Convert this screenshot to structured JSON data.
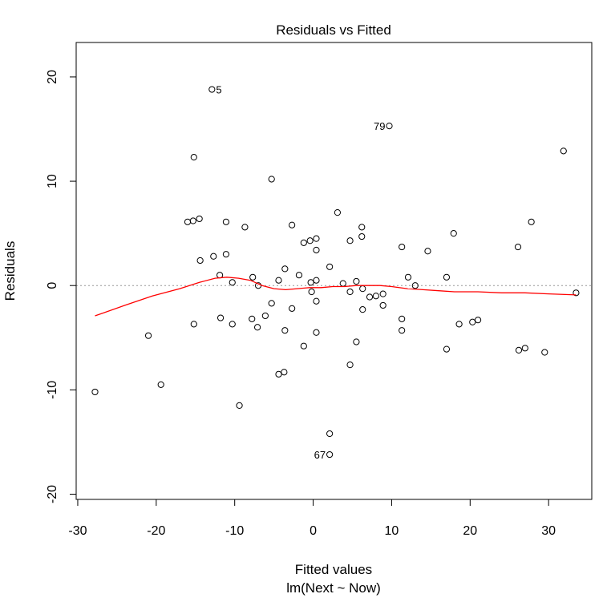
{
  "chart_data": {
    "type": "scatter",
    "title": "Residuals vs Fitted",
    "xlabel": "Fitted values",
    "subtitle": "lm(Next ~ Now)",
    "ylabel": "Residuals",
    "xlim": [
      -30.2,
      35.5
    ],
    "ylim": [
      -20.5,
      23.3
    ],
    "x_ticks": [
      -30,
      -20,
      -10,
      0,
      10,
      20,
      30
    ],
    "y_ticks": [
      -20,
      -10,
      0,
      10,
      20
    ],
    "grid": false,
    "reference_line": {
      "y": 0,
      "style": "dotted",
      "color": "#999999"
    },
    "smooth_color": "#ff0000",
    "point_color": "#000000",
    "points": [
      {
        "x": -27.8,
        "y": -10.2
      },
      {
        "x": -21.0,
        "y": -4.8
      },
      {
        "x": -19.4,
        "y": -9.5
      },
      {
        "x": -16.0,
        "y": 6.1
      },
      {
        "x": -15.3,
        "y": 6.2
      },
      {
        "x": -15.2,
        "y": 12.3
      },
      {
        "x": -15.2,
        "y": -3.7
      },
      {
        "x": -14.5,
        "y": 6.4
      },
      {
        "x": -14.4,
        "y": 2.4
      },
      {
        "x": -12.9,
        "y": 18.8
      },
      {
        "x": -12.7,
        "y": 2.8
      },
      {
        "x": -11.9,
        "y": 1.0
      },
      {
        "x": -11.8,
        "y": -3.1
      },
      {
        "x": -11.1,
        "y": 6.1
      },
      {
        "x": -11.1,
        "y": 3.0
      },
      {
        "x": -10.3,
        "y": 0.3
      },
      {
        "x": -10.3,
        "y": -3.7
      },
      {
        "x": -9.4,
        "y": -11.5
      },
      {
        "x": -8.7,
        "y": 5.6
      },
      {
        "x": -7.8,
        "y": -3.2
      },
      {
        "x": -7.7,
        "y": 0.8
      },
      {
        "x": -7.1,
        "y": -4.0
      },
      {
        "x": -7.0,
        "y": 0.0
      },
      {
        "x": -6.1,
        "y": -2.9
      },
      {
        "x": -5.3,
        "y": 10.2
      },
      {
        "x": -5.3,
        "y": -1.7
      },
      {
        "x": -4.4,
        "y": -8.5
      },
      {
        "x": -4.4,
        "y": 0.5
      },
      {
        "x": -3.7,
        "y": -8.3
      },
      {
        "x": -3.6,
        "y": 1.6
      },
      {
        "x": -3.6,
        "y": -4.3
      },
      {
        "x": -2.7,
        "y": 5.8
      },
      {
        "x": -2.7,
        "y": -2.2
      },
      {
        "x": -1.8,
        "y": 1.0
      },
      {
        "x": -1.2,
        "y": 4.1
      },
      {
        "x": -1.2,
        "y": -5.8
      },
      {
        "x": -0.4,
        "y": 4.3
      },
      {
        "x": -0.3,
        "y": 0.3
      },
      {
        "x": -0.2,
        "y": -0.6
      },
      {
        "x": 0.4,
        "y": 4.5
      },
      {
        "x": 0.4,
        "y": 3.4
      },
      {
        "x": 0.4,
        "y": 0.5
      },
      {
        "x": 0.4,
        "y": -1.5
      },
      {
        "x": 0.4,
        "y": -4.5
      },
      {
        "x": 2.1,
        "y": 1.8
      },
      {
        "x": 2.1,
        "y": -14.2
      },
      {
        "x": 2.1,
        "y": -16.2
      },
      {
        "x": 3.1,
        "y": 7.0
      },
      {
        "x": 3.8,
        "y": 0.2
      },
      {
        "x": 4.7,
        "y": 4.3
      },
      {
        "x": 4.7,
        "y": -0.6
      },
      {
        "x": 4.7,
        "y": -7.6
      },
      {
        "x": 5.5,
        "y": 0.4
      },
      {
        "x": 5.5,
        "y": -5.4
      },
      {
        "x": 6.2,
        "y": 5.6
      },
      {
        "x": 6.2,
        "y": 4.7
      },
      {
        "x": 6.3,
        "y": -0.3
      },
      {
        "x": 6.3,
        "y": -2.3
      },
      {
        "x": 7.2,
        "y": -1.1
      },
      {
        "x": 8.0,
        "y": -1.0
      },
      {
        "x": 8.9,
        "y": -0.8
      },
      {
        "x": 8.9,
        "y": -1.9
      },
      {
        "x": 9.7,
        "y": 15.3
      },
      {
        "x": 11.3,
        "y": 3.7
      },
      {
        "x": 11.3,
        "y": -3.2
      },
      {
        "x": 11.3,
        "y": -4.3
      },
      {
        "x": 12.1,
        "y": 0.8
      },
      {
        "x": 13.0,
        "y": 0.0
      },
      {
        "x": 14.6,
        "y": 3.3
      },
      {
        "x": 17.0,
        "y": 0.8
      },
      {
        "x": 17.0,
        "y": -6.1
      },
      {
        "x": 17.9,
        "y": 5.0
      },
      {
        "x": 18.6,
        "y": -3.7
      },
      {
        "x": 20.3,
        "y": -3.5
      },
      {
        "x": 21.0,
        "y": -3.3
      },
      {
        "x": 26.1,
        "y": 3.7
      },
      {
        "x": 26.2,
        "y": -6.2
      },
      {
        "x": 27.0,
        "y": -6.0
      },
      {
        "x": 27.8,
        "y": 6.1
      },
      {
        "x": 29.5,
        "y": -6.4
      },
      {
        "x": 31.9,
        "y": 12.9
      },
      {
        "x": 33.5,
        "y": -0.7
      }
    ],
    "smooth": {
      "x": [
        -27.8,
        -24.0,
        -20.5,
        -17.0,
        -14.5,
        -12.5,
        -11.0,
        -9.5,
        -8.0,
        -6.5,
        -5.0,
        -3.5,
        -2.0,
        -0.5,
        1.0,
        2.5,
        4.0,
        5.5,
        7.0,
        8.5,
        10.0,
        12.0,
        14.0,
        16.0,
        18.0,
        21.0,
        24.0,
        27.0,
        30.0,
        33.5
      ],
      "y": [
        -2.9,
        -1.9,
        -1.0,
        -0.3,
        0.3,
        0.7,
        0.8,
        0.7,
        0.5,
        0.0,
        -0.3,
        -0.4,
        -0.3,
        -0.2,
        -0.2,
        -0.1,
        -0.1,
        0.0,
        0.0,
        0.0,
        -0.1,
        -0.3,
        -0.4,
        -0.5,
        -0.6,
        -0.6,
        -0.7,
        -0.7,
        -0.8,
        -0.9
      ]
    },
    "annotations": [
      {
        "text": "5",
        "x": -12.9,
        "y": 18.8,
        "side": "right"
      },
      {
        "text": "79",
        "x": 9.7,
        "y": 15.3,
        "side": "left"
      },
      {
        "text": "67",
        "x": 2.1,
        "y": -16.2,
        "side": "left"
      }
    ]
  }
}
